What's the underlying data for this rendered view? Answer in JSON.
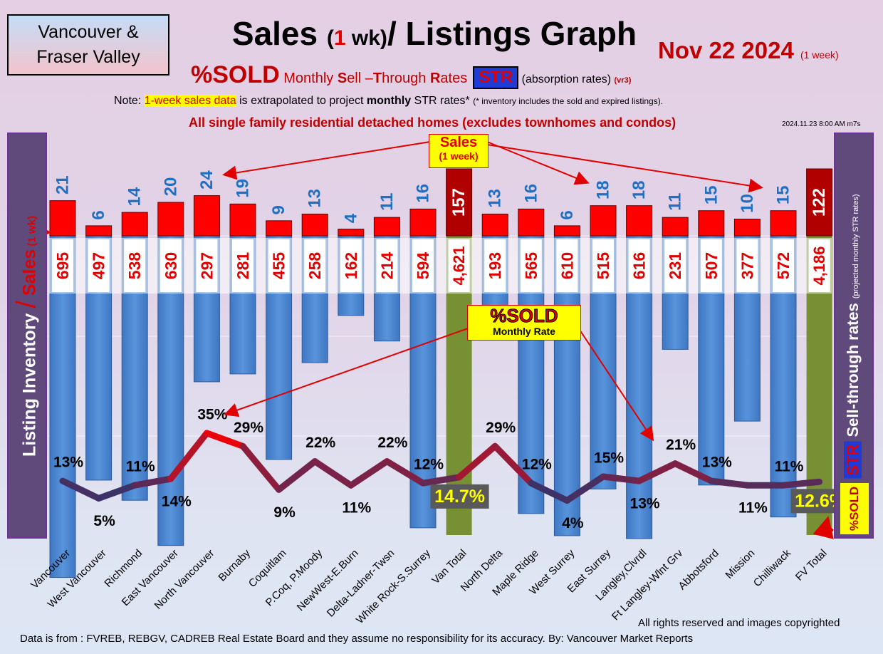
{
  "region": {
    "line1": "Vancouver &",
    "line2": "Fraser Valley"
  },
  "title": {
    "main1": "Sales ",
    "paren_open": "(",
    "num": "1",
    "wk": " wk)",
    "main2": "/ Listings Graph"
  },
  "date": {
    "text": "Nov 22  2024",
    "note": "(1 week)"
  },
  "subtitle": {
    "pct": "%SOLD",
    "rest_pre": " Monthly ",
    "S": "S",
    "ell": "ell –",
    "T": "T",
    "hrough": "hrough ",
    "R": "R",
    "ates": "ates",
    "str": "STR",
    "absorption": "(absorption rates)",
    "ver": "(vr3)"
  },
  "note": {
    "prefix": "Note: ",
    "highlight": "1-week sales data",
    "middle": " is extrapolated to project ",
    "bold": "monthly",
    "suffix": " STR rates* ",
    "small": "(* inventory includes the sold and expired listings)."
  },
  "note2": "All single family residential detached homes (excludes townhomes and condos)",
  "timestamp": "2024.11.23 8:00 AM m7s",
  "left_label": {
    "text1": "Listing Inventory ",
    "slash": "/",
    "sales": " Sales",
    "wk": " (1 wk)"
  },
  "right_label": {
    "str": "STR",
    "text": " Sell-through rates ",
    "small": "(projected monthly STR rates)"
  },
  "pctsold_tag": "%SOLD",
  "sales_box": {
    "line1": "Sales",
    "line2": "(1 week)"
  },
  "sold_box": {
    "line1": "%SOLD",
    "line2": "Monthly Rate"
  },
  "footer": {
    "copyright": "All rights reserved and  images copyrighted",
    "source": "Data is from : FVREB, REBGV, CADREB Real Estate Board and they assume no responsibility for its accuracy. By: Vancouver Market Reports"
  },
  "colors": {
    "inventory_bar": "#4a86d4",
    "total_bar": "#779033",
    "sales_bar": "#ff0000",
    "total_sales_bar": "#b00000",
    "sales_label": "#1f70c1",
    "inventory_label": "#e00000",
    "line_high": "#ff0000",
    "line_low": "#2d3b70"
  },
  "chart_data": {
    "type": "bar",
    "categories": [
      "Vancouver",
      "West Vancouver",
      "Richmond",
      "East Vancouver",
      "North Vancouver",
      "Burnaby",
      "Coquitlam",
      "P.Coq, P.Moody",
      "NewWest-E.Burn",
      "Delta-Ladner-Twsn",
      "White Rock-S.Surrey",
      "Van Total",
      "North Delta",
      "Maple Ridge",
      "West Surrey",
      "East Surrey",
      "Langley,Clvrdl",
      "Ft Langley-Wlnt Grv",
      "Abbotsford",
      "Mission",
      "Chilliwack",
      "FV Total"
    ],
    "totals": [
      "Van Total",
      "FV Total"
    ],
    "series": [
      {
        "name": "Sales",
        "values": [
          21,
          6,
          14,
          20,
          24,
          19,
          9,
          13,
          4,
          11,
          16,
          157,
          13,
          16,
          6,
          18,
          18,
          11,
          15,
          10,
          15,
          122
        ]
      },
      {
        "name": "Listing Inventory",
        "values": [
          695,
          497,
          538,
          630,
          297,
          281,
          455,
          258,
          162,
          214,
          594,
          4621,
          193,
          565,
          610,
          515,
          616,
          231,
          507,
          377,
          572,
          4186
        ]
      },
      {
        "name": "%SOLD",
        "values": [
          13,
          5,
          11,
          14,
          35,
          29,
          9,
          22,
          11,
          22,
          12,
          14.7,
          29,
          12,
          4,
          15,
          13,
          21,
          13,
          11,
          11,
          12.6
        ]
      }
    ],
    "sales_labels": [
      "21",
      "6",
      "14",
      "20",
      "24",
      "19",
      "9",
      "13",
      "4",
      "11",
      "16",
      "157",
      "13",
      "16",
      "6",
      "18",
      "18",
      "11",
      "15",
      "10",
      "15",
      "122"
    ],
    "inventory_labels": [
      "695",
      "497",
      "538",
      "630",
      "297",
      "281",
      "455",
      "258",
      "162",
      "214",
      "594",
      "4,621",
      "193",
      "565",
      "610",
      "515",
      "616",
      "231",
      "507",
      "377",
      "572",
      "4,186"
    ],
    "pct_labels": [
      "13%",
      "5%",
      "11%",
      "14%",
      "35%",
      "29%",
      "9%",
      "22%",
      "11%",
      "22%",
      "12%",
      "14.7%",
      "29%",
      "12%",
      "4%",
      "15%",
      "13%",
      "21%",
      "13%",
      "11%",
      "11%",
      "12.6%"
    ],
    "pct_label_position": [
      "above",
      "below",
      "above",
      "below",
      "above",
      "above",
      "below",
      "above",
      "below",
      "above",
      "above",
      "box",
      "above",
      "above",
      "below",
      "above",
      "below",
      "above",
      "above",
      "below",
      "above",
      "box"
    ]
  }
}
